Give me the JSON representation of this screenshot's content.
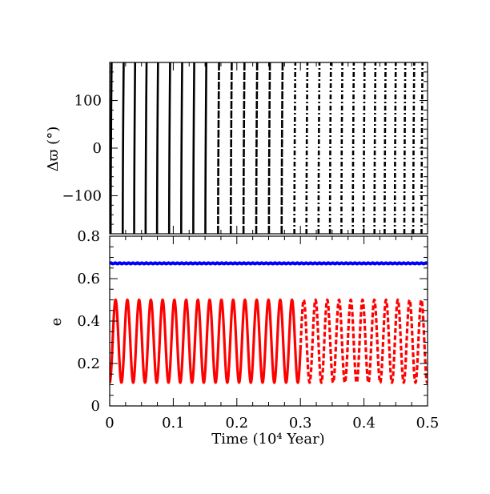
{
  "chart_data": [
    {
      "type": "scatter",
      "panel": "top",
      "ylabel": "Δϖ (°)",
      "xlim": [
        0,
        0.5
      ],
      "ylim": [
        -180,
        180
      ],
      "yticks": [
        {
          "value": 100,
          "label": "100"
        },
        {
          "value": 0,
          "label": "0"
        },
        {
          "value": -100,
          "label": "−100"
        }
      ],
      "series": [
        {
          "style": "dashed circulating wraps",
          "color": "#000000",
          "wrap_times": [
            0.003,
            0.022,
            0.04,
            0.058,
            0.076,
            0.095,
            0.114,
            0.133,
            0.152,
            0.172,
            0.192,
            0.212,
            0.232,
            0.252,
            0.272,
            0.292,
            0.311,
            0.33,
            0.348,
            0.366,
            0.384,
            0.401,
            0.418,
            0.434,
            0.45,
            0.465,
            0.479,
            0.492
          ]
        }
      ]
    },
    {
      "type": "line",
      "panel": "bottom",
      "xlabel": "Time (10⁴ Year)",
      "ylabel": "e",
      "xlim": [
        0,
        0.5
      ],
      "ylim": [
        0,
        0.8
      ],
      "xticks": [
        {
          "value": 0,
          "label": "0"
        },
        {
          "value": 0.1,
          "label": "0.1"
        },
        {
          "value": 0.2,
          "label": "0.2"
        },
        {
          "value": 0.3,
          "label": "0.3"
        },
        {
          "value": 0.4,
          "label": "0.4"
        },
        {
          "value": 0.5,
          "label": "0.5"
        }
      ],
      "yticks": [
        {
          "value": 0,
          "label": "0"
        },
        {
          "value": 0.2,
          "label": "0.2"
        },
        {
          "value": 0.4,
          "label": "0.4"
        },
        {
          "value": 0.6,
          "label": "0.6"
        },
        {
          "value": 0.8,
          "label": "0.8"
        }
      ],
      "series": [
        {
          "color": "#0000ff",
          "kind": "constant",
          "value": 0.672
        },
        {
          "color": "#ff0000",
          "kind": "oscillation",
          "min": 0.11,
          "max": 0.5,
          "period": 0.0185,
          "dashed_after": 0.3
        }
      ]
    }
  ]
}
